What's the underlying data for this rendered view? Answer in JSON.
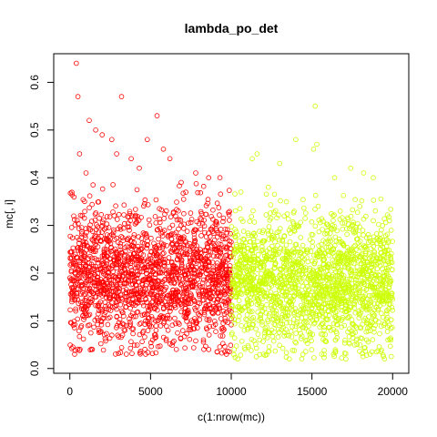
{
  "chart_data": {
    "type": "scatter",
    "title": "lambda_po_det",
    "xlabel": "c(1:nrow(mc))",
    "ylabel": "mc[, i]",
    "xlim": [
      -1000,
      21000
    ],
    "ylim": [
      -0.01,
      0.66
    ],
    "x_ticks": [
      0,
      5000,
      10000,
      15000,
      20000
    ],
    "x_tick_labels": [
      "0",
      "5000",
      "10000",
      "15000",
      "20000"
    ],
    "y_ticks": [
      0.0,
      0.1,
      0.2,
      0.3,
      0.4,
      0.5,
      0.6
    ],
    "y_tick_labels": [
      "0.0",
      "0.1",
      "0.2",
      "0.3",
      "0.4",
      "0.5",
      "0.6"
    ],
    "grid": false,
    "legend": "none",
    "marker": "open-circle",
    "series": [
      {
        "color": "#ff0000",
        "x_range": [
          1,
          10000
        ],
        "typical_range": [
          0.04,
          0.35
        ],
        "points": [
          [
            400,
            0.64
          ],
          [
            500,
            0.57
          ],
          [
            3200,
            0.57
          ],
          [
            5400,
            0.53
          ],
          [
            1200,
            0.52
          ],
          [
            2000,
            0.49
          ],
          [
            1600,
            0.5
          ],
          [
            2600,
            0.48
          ],
          [
            4800,
            0.48
          ],
          [
            5800,
            0.46
          ],
          [
            2900,
            0.45
          ],
          [
            3800,
            0.44
          ],
          [
            6200,
            0.44
          ],
          [
            600,
            0.45
          ],
          [
            1000,
            0.41
          ],
          [
            7800,
            0.41
          ],
          [
            8600,
            0.4
          ],
          [
            9300,
            0.4
          ],
          [
            4300,
            0.42
          ],
          [
            6900,
            0.39
          ],
          [
            300,
            0.03
          ],
          [
            1400,
            0.04
          ],
          [
            3500,
            0.03
          ],
          [
            4700,
            0.03
          ],
          [
            6600,
            0.04
          ],
          [
            8300,
            0.04
          ],
          [
            9700,
            0.03
          ]
        ]
      },
      {
        "color": "#ccff00",
        "x_range": [
          10001,
          20000
        ],
        "typical_range": [
          0.03,
          0.33
        ],
        "points": [
          [
            15200,
            0.55
          ],
          [
            11600,
            0.45
          ],
          [
            11300,
            0.44
          ],
          [
            15100,
            0.46
          ],
          [
            15300,
            0.47
          ],
          [
            14000,
            0.48
          ],
          [
            13000,
            0.43
          ],
          [
            17400,
            0.42
          ],
          [
            18200,
            0.41
          ],
          [
            19800,
            0.31
          ],
          [
            10600,
            0.37
          ],
          [
            12300,
            0.38
          ],
          [
            16400,
            0.4
          ],
          [
            18800,
            0.4
          ],
          [
            10400,
            0.02
          ],
          [
            12000,
            0.03
          ],
          [
            13600,
            0.02
          ],
          [
            15600,
            0.03
          ],
          [
            17100,
            0.02
          ],
          [
            18600,
            0.03
          ],
          [
            19500,
            0.02
          ]
        ]
      }
    ]
  }
}
